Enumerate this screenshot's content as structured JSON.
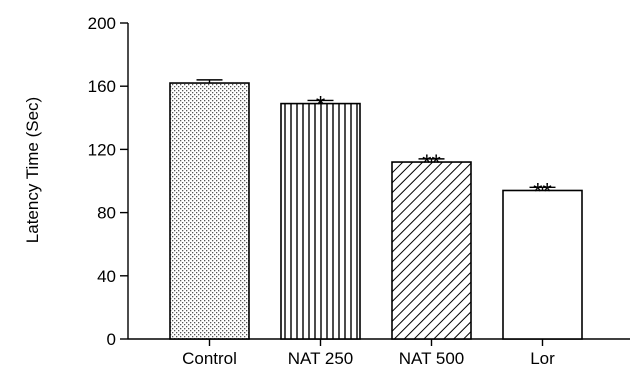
{
  "chart_data": {
    "type": "bar",
    "title": "",
    "xlabel": "",
    "ylabel": "Latency Time (Sec)",
    "ylim": [
      0,
      200
    ],
    "yticks": [
      0,
      40,
      80,
      120,
      160,
      200
    ],
    "ytick_labels": [
      "0",
      "40",
      "80",
      "120",
      "160",
      "200"
    ],
    "categories": [
      "Control",
      "NAT 250",
      "NAT 500",
      "Lor"
    ],
    "values": [
      162,
      149,
      112,
      94
    ],
    "errors": [
      2,
      2,
      2,
      2
    ],
    "significance": [
      "",
      "*",
      "**",
      "**"
    ],
    "bar_fills": [
      "dotted",
      "vertical-lines",
      "diagonal-lines",
      "white"
    ],
    "grid": false,
    "legend": "none"
  }
}
